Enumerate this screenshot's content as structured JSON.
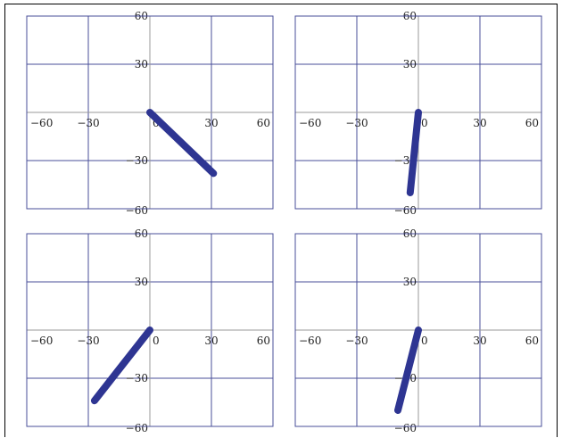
{
  "chart_data": [
    {
      "type": "line",
      "xlim": [
        -60,
        60
      ],
      "ylim": [
        -60,
        60
      ],
      "x_ticks": [
        -60,
        -30,
        0,
        30,
        60
      ],
      "y_ticks": [
        -60,
        -30,
        30,
        60
      ],
      "x_tick_labels": [
        "−60",
        "−30",
        "0",
        "30",
        "60"
      ],
      "y_tick_labels": [
        "−60",
        "−30",
        "30",
        "60"
      ],
      "grid": true,
      "series": [
        {
          "x": [
            0,
            31
          ],
          "y": [
            0,
            -38
          ]
        }
      ]
    },
    {
      "type": "line",
      "xlim": [
        -60,
        60
      ],
      "ylim": [
        -60,
        60
      ],
      "x_ticks": [
        -60,
        -30,
        0,
        30,
        60
      ],
      "y_ticks": [
        -60,
        -30,
        30,
        60
      ],
      "x_tick_labels": [
        "−60",
        "−30",
        "0",
        "30",
        "60"
      ],
      "y_tick_labels": [
        "−60",
        "−30",
        "30",
        "60"
      ],
      "grid": true,
      "series": [
        {
          "x": [
            0,
            -4
          ],
          "y": [
            0,
            -50
          ]
        }
      ]
    },
    {
      "type": "line",
      "xlim": [
        -60,
        60
      ],
      "ylim": [
        -60,
        60
      ],
      "x_ticks": [
        -60,
        -30,
        0,
        30,
        60
      ],
      "y_ticks": [
        -60,
        -30,
        30,
        60
      ],
      "x_tick_labels": [
        "−60",
        "−30",
        "0",
        "30",
        "60"
      ],
      "y_tick_labels": [
        "−60",
        "−30",
        "30",
        "60"
      ],
      "grid": true,
      "series": [
        {
          "x": [
            0,
            -27
          ],
          "y": [
            0,
            -44
          ]
        }
      ]
    },
    {
      "type": "line",
      "xlim": [
        -60,
        60
      ],
      "ylim": [
        -60,
        60
      ],
      "x_ticks": [
        -60,
        -30,
        0,
        30,
        60
      ],
      "y_ticks": [
        -60,
        -30,
        30,
        60
      ],
      "x_tick_labels": [
        "−60",
        "−30",
        "0",
        "30",
        "60"
      ],
      "y_tick_labels": [
        "−60",
        "−30",
        "30",
        "60"
      ],
      "grid": true,
      "series": [
        {
          "x": [
            0,
            -10
          ],
          "y": [
            0,
            -50
          ]
        }
      ]
    }
  ],
  "colors": {
    "grid": "#4a4f9a",
    "axis": "#9a9a9a",
    "series": "#2e3592"
  }
}
